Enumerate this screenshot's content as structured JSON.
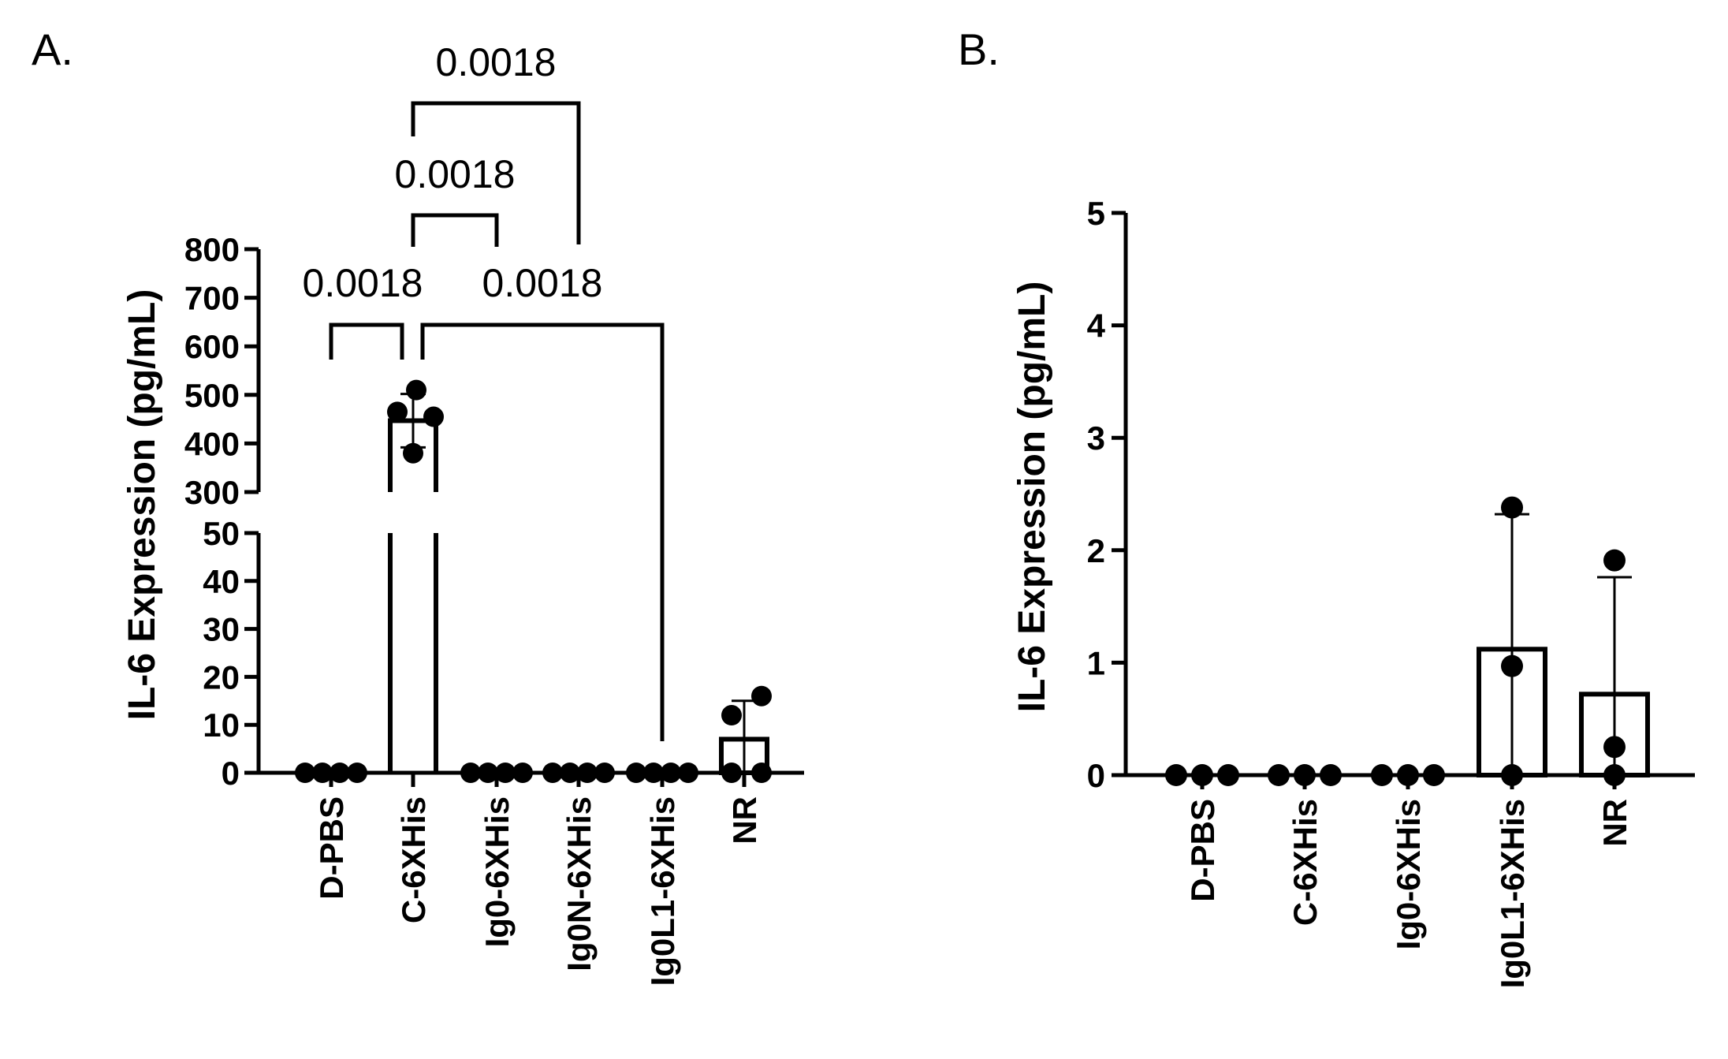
{
  "chart_data": [
    {
      "panel_label": "A.",
      "type": "bar",
      "ylabel": "IL-6 Expression (pg/mL)",
      "y_axis_break": {
        "lower": [
          0,
          50
        ],
        "upper": [
          300,
          800
        ]
      },
      "yticks_lower": [
        0,
        10,
        20,
        30,
        40,
        50
      ],
      "yticks_upper": [
        300,
        400,
        500,
        600,
        700,
        800
      ],
      "categories": [
        "D-PBS",
        "C-6XHis",
        "Ig0-6XHis",
        "Ig0N-6XHis",
        "Ig0L1-6XHis",
        "NR"
      ],
      "values": [
        0,
        447,
        0,
        0,
        0,
        7
      ],
      "error": [
        0,
        55,
        0,
        0,
        0,
        8
      ],
      "points": [
        [
          0,
          0,
          0,
          0
        ],
        [
          510,
          465,
          455,
          380
        ],
        [
          0,
          0,
          0,
          0
        ],
        [
          0,
          0,
          0,
          0
        ],
        [
          0,
          0,
          0,
          0
        ],
        [
          16,
          12,
          0,
          0
        ]
      ],
      "comparisons": [
        {
          "from": "D-PBS",
          "to": "C-6XHis",
          "p": "0.0018"
        },
        {
          "from": "C-6XHis",
          "to": "Ig0L1-6XHis",
          "p": "0.0018"
        },
        {
          "from": "C-6XHis",
          "to": "Ig0-6XHis",
          "p": "0.0018"
        },
        {
          "from": "C-6XHis",
          "to": "Ig0N-6XHis",
          "p": "0.0018"
        }
      ]
    },
    {
      "panel_label": "B.",
      "type": "bar",
      "ylabel": "IL-6 Expression (pg/mL)",
      "ylim": [
        0,
        5
      ],
      "yticks": [
        0,
        1,
        2,
        3,
        4,
        5
      ],
      "categories": [
        "D-PBS",
        "C-6XHis",
        "Ig0-6XHis",
        "Ig0L1-6XHis",
        "NR"
      ],
      "values": [
        0,
        0,
        0,
        1.12,
        0.72
      ],
      "error": [
        0,
        0,
        0,
        1.2,
        1.04
      ],
      "points": [
        [
          0,
          0,
          0
        ],
        [
          0,
          0,
          0
        ],
        [
          0,
          0,
          0
        ],
        [
          2.38,
          0.97,
          0
        ],
        [
          1.91,
          0.25,
          0
        ]
      ]
    }
  ]
}
